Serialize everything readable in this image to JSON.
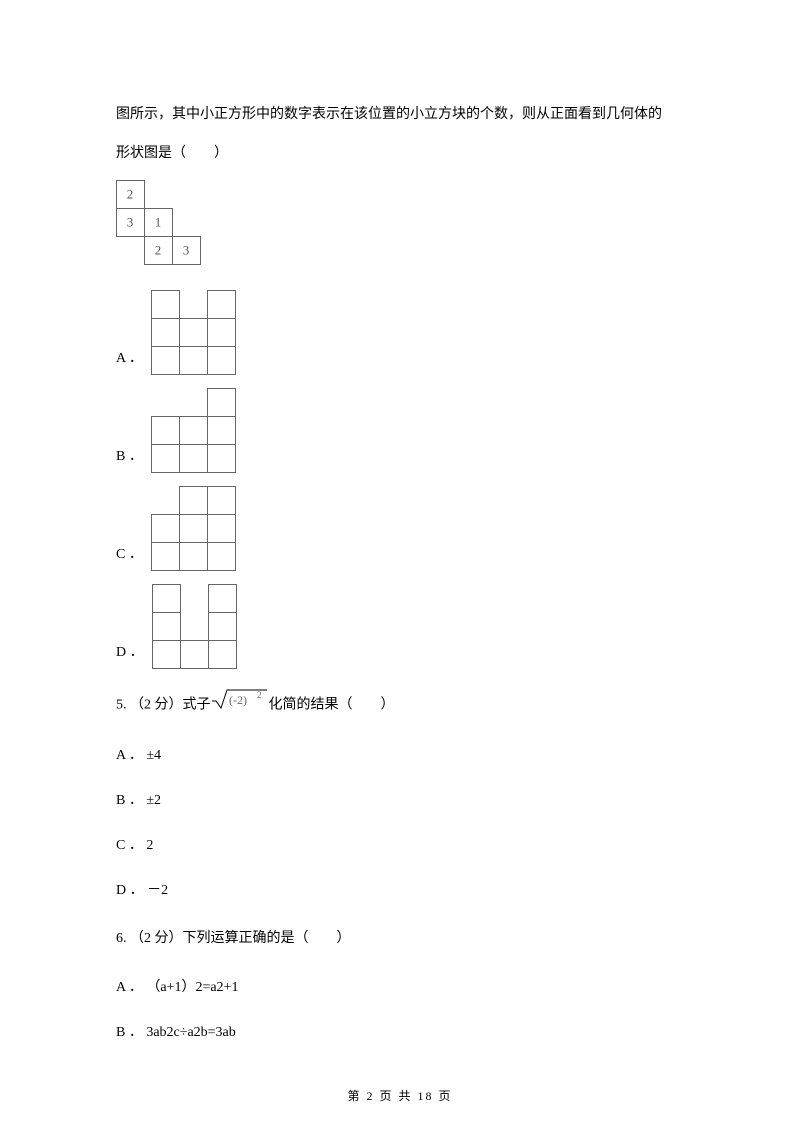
{
  "intro_line1": "图所示，其中小正方形中的数字表示在该位置的小立方块的个数，则从正面看到几何体的",
  "intro_line2": "形状图是（　　）",
  "stair": {
    "cells": [
      {
        "r": 0,
        "c": 0,
        "v": "2"
      },
      {
        "r": 1,
        "c": 0,
        "v": "3"
      },
      {
        "r": 1,
        "c": 1,
        "v": "1"
      },
      {
        "r": 2,
        "c": 1,
        "v": "2"
      },
      {
        "r": 2,
        "c": 2,
        "v": "3"
      }
    ],
    "cell": 28,
    "font": 13,
    "stroke": "#666666",
    "text_color": "#555555"
  },
  "opts4": {
    "labels": [
      "A ．",
      "B ．",
      "C ．",
      "D ．"
    ],
    "cell": 28,
    "cols": 3,
    "rows": 3,
    "stroke": "#666666",
    "missing": {
      "A": [
        [
          0,
          1
        ]
      ],
      "B": [
        [
          0,
          0
        ],
        [
          0,
          1
        ]
      ],
      "C": [
        [
          0,
          0
        ]
      ],
      "D": [
        [
          0,
          1
        ],
        [
          1,
          1
        ]
      ]
    }
  },
  "q5": {
    "prefix": "5. （2 分）式子",
    "expr_fontsize": 12,
    "expr_color": "#666666",
    "suffix": "化简的结果（　　）",
    "options": [
      {
        "label": "A ．",
        "text": "±4"
      },
      {
        "label": "B ．",
        "text": "±2"
      },
      {
        "label": "C ．",
        "text": "2"
      },
      {
        "label": "D ．",
        "text": "－2"
      }
    ]
  },
  "q6": {
    "text": "6. （2 分）下列运算正确的是（　　）",
    "options": [
      {
        "label": "A ．",
        "text": "（a+1）2=a2+1"
      },
      {
        "label": "B ．",
        "text": "3ab2c÷a2b=3ab"
      }
    ]
  },
  "footer": "第 2 页 共 18 页"
}
